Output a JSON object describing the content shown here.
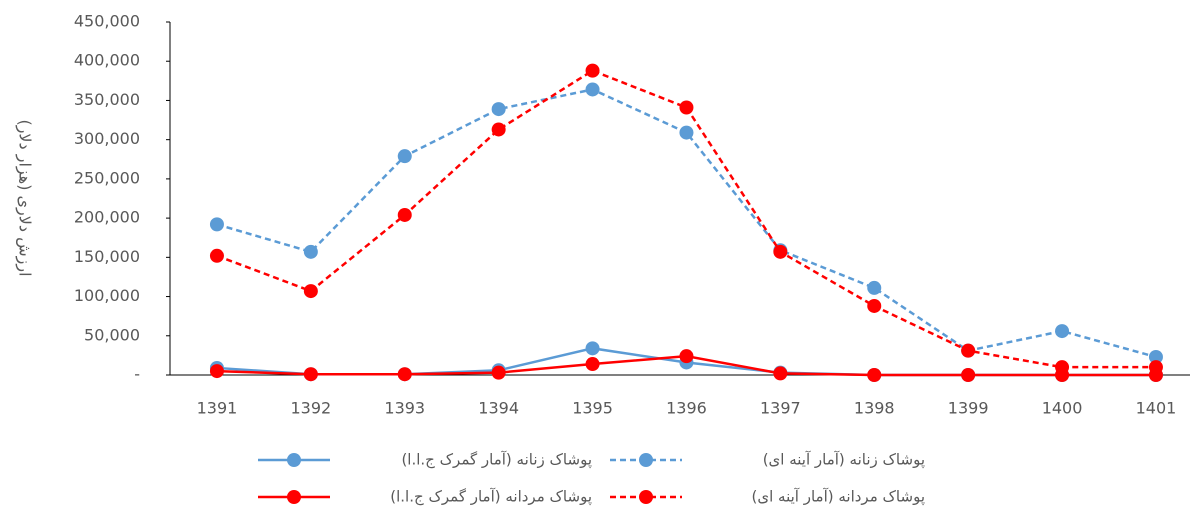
{
  "chart_data": {
    "type": "line",
    "y_label": "ارزش دلاری (هزار دلار)",
    "categories": [
      "1391",
      "1392",
      "1393",
      "1394",
      "1395",
      "1396",
      "1397",
      "1398",
      "1399",
      "1400",
      "1401"
    ],
    "series": [
      {
        "name": "پوشاک زنانه (آمار گمرک ج.ا.ا)",
        "color": "#5b9bd5",
        "line_style": "solid",
        "values": [
          9000,
          1000,
          1000,
          6000,
          34000,
          16000,
          3000,
          0,
          0,
          0,
          0
        ]
      },
      {
        "name": "پوشاک زنانه (آمار آینه ای)",
        "color": "#5b9bd5",
        "line_style": "dashed",
        "values": [
          192000,
          157000,
          279000,
          339000,
          364000,
          309000,
          159000,
          111000,
          31000,
          56000,
          23000
        ]
      },
      {
        "name": "پوشاک مردانه (آمار گمرک ج.ا.ا)",
        "color": "#ff0000",
        "line_style": "solid",
        "values": [
          5000,
          1000,
          1000,
          3000,
          14000,
          24000,
          2000,
          0,
          0,
          0,
          0
        ]
      },
      {
        "name": "پوشاک مردانه (آمار آینه ای)",
        "color": "#ff0000",
        "line_style": "dashed",
        "values": [
          152000,
          107000,
          204000,
          313000,
          388000,
          341000,
          157000,
          88000,
          31000,
          10000,
          10000
        ]
      }
    ],
    "ylim": [
      0,
      450000
    ],
    "yticks": [
      {
        "value": 0,
        "label": "-"
      },
      {
        "value": 50000,
        "label": "50,000"
      },
      {
        "value": 100000,
        "label": "100,000"
      },
      {
        "value": 150000,
        "label": "150,000"
      },
      {
        "value": 200000,
        "label": "200,000"
      },
      {
        "value": 250000,
        "label": "250,000"
      },
      {
        "value": 300000,
        "label": "300,000"
      },
      {
        "value": 350000,
        "label": "350,000"
      },
      {
        "value": 400000,
        "label": "400,000"
      },
      {
        "value": 450000,
        "label": "450,000"
      }
    ],
    "legend": "bottom",
    "grid": false
  }
}
